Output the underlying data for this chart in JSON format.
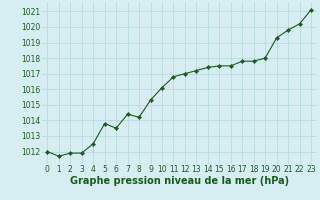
{
  "x": [
    0,
    1,
    2,
    3,
    4,
    5,
    6,
    7,
    8,
    9,
    10,
    11,
    12,
    13,
    14,
    15,
    16,
    17,
    18,
    19,
    20,
    21,
    22,
    23
  ],
  "y": [
    1012.0,
    1011.7,
    1011.9,
    1011.9,
    1012.5,
    1013.8,
    1013.5,
    1014.4,
    1014.2,
    1015.3,
    1016.1,
    1016.8,
    1017.0,
    1017.2,
    1017.4,
    1017.5,
    1017.5,
    1017.8,
    1017.8,
    1018.0,
    1019.3,
    1019.8,
    1020.2,
    1021.1
  ],
  "line_color": "#1a5c1a",
  "marker": "D",
  "marker_size": 2.2,
  "bg_color": "#d6eef2",
  "grid_color": "#b8dce0",
  "xlabel": "Graphe pression niveau de la mer (hPa)",
  "xlabel_color": "#1a5c1a",
  "tick_color": "#1a5c1a",
  "ylim": [
    1011.2,
    1021.6
  ],
  "yticks": [
    1012,
    1013,
    1014,
    1015,
    1016,
    1017,
    1018,
    1019,
    1020,
    1021
  ],
  "xlim": [
    -0.5,
    23.5
  ],
  "xticks": [
    0,
    1,
    2,
    3,
    4,
    5,
    6,
    7,
    8,
    9,
    10,
    11,
    12,
    13,
    14,
    15,
    16,
    17,
    18,
    19,
    20,
    21,
    22,
    23
  ],
  "tick_fontsize": 5.5,
  "xlabel_fontsize": 7.0,
  "linewidth": 0.8
}
